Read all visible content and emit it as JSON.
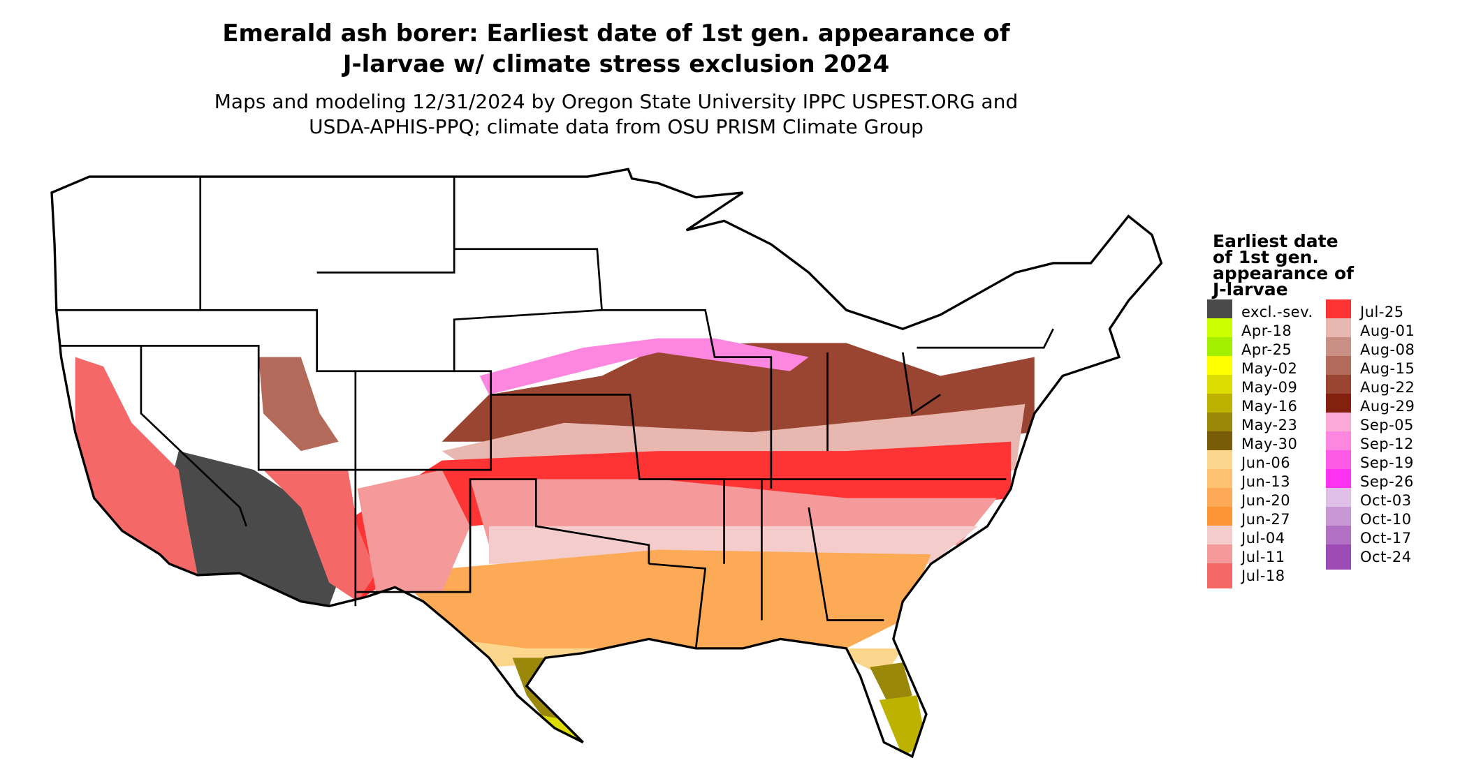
{
  "title": {
    "line1": "Emerald ash borer: Earliest date of 1st gen. appearance of",
    "line2": "J-larvae w/ climate stress exclusion 2024"
  },
  "subtitle": {
    "line1": "Maps and modeling 12/31/2024 by Oregon State University IPPC USPEST.ORG and",
    "line2": "USDA-APHIS-PPQ; climate data from OSU PRISM Climate Group"
  },
  "legend": {
    "title": [
      "Earliest date",
      "of 1st gen.",
      "appearance of",
      "J-larvae"
    ],
    "items": [
      {
        "label": "excl.-sev.",
        "color": "#4a4a4a"
      },
      {
        "label": "Apr-18",
        "color": "#ccff00"
      },
      {
        "label": "Apr-25",
        "color": "#a2f000"
      },
      {
        "label": "May-02",
        "color": "#ffff00"
      },
      {
        "label": "May-09",
        "color": "#dcdc00"
      },
      {
        "label": "May-16",
        "color": "#bdb200"
      },
      {
        "label": "May-23",
        "color": "#9a880a"
      },
      {
        "label": "May-30",
        "color": "#785c08"
      },
      {
        "label": "Jun-06",
        "color": "#fdd68e"
      },
      {
        "label": "Jun-13",
        "color": "#fdc272"
      },
      {
        "label": "Jun-20",
        "color": "#fcaa55"
      },
      {
        "label": "Jun-27",
        "color": "#fc9436"
      },
      {
        "label": "Jul-04",
        "color": "#f4cccc"
      },
      {
        "label": "Jul-11",
        "color": "#f49a9a"
      },
      {
        "label": "Jul-18",
        "color": "#f46868"
      },
      {
        "label": "Jul-25",
        "color": "#fe3434"
      },
      {
        "label": "Aug-01",
        "color": "#e8b8b0"
      },
      {
        "label": "Aug-08",
        "color": "#c98e84"
      },
      {
        "label": "Aug-15",
        "color": "#b36a5a"
      },
      {
        "label": "Aug-22",
        "color": "#9a4432"
      },
      {
        "label": "Aug-29",
        "color": "#84200e"
      },
      {
        "label": "Sep-05",
        "color": "#fdaad8"
      },
      {
        "label": "Sep-12",
        "color": "#fd86e0"
      },
      {
        "label": "Sep-19",
        "color": "#fd5ae8"
      },
      {
        "label": "Sep-26",
        "color": "#fd32f0"
      },
      {
        "label": "Oct-03",
        "color": "#e0c0e6"
      },
      {
        "label": "Oct-10",
        "color": "#c898d4"
      },
      {
        "label": "Oct-17",
        "color": "#b270c4"
      },
      {
        "label": "Oct-24",
        "color": "#9c4ab4"
      }
    ]
  }
}
